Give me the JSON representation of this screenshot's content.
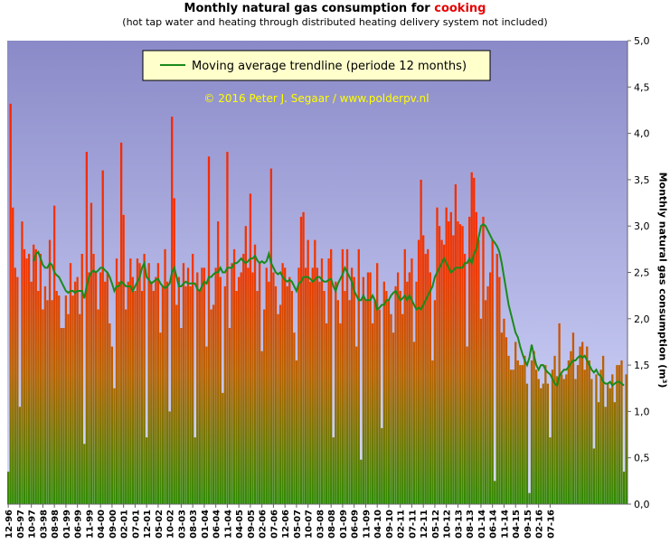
{
  "chart_data": {
    "type": "bar",
    "title_prefix": "Monthly natural gas consumption for ",
    "title_highlight": "cooking",
    "subtitle": "(hot tap water and heating through distributed heating delivery system not included)",
    "ylabel": "Monthly natural gas consumption (m³)",
    "watermark": "© 2016 Peter J. Segaar / www.polderpv.nl",
    "legend": "Moving average trendline (periode 12 months)",
    "legend_placement": "top-center",
    "ylim": [
      0,
      5
    ],
    "yticks": [
      "0,0",
      "0,5",
      "1,0",
      "1,5",
      "2,0",
      "2,5",
      "3,0",
      "3,5",
      "4,0",
      "4,5",
      "5,0"
    ],
    "grid": false,
    "colors": {
      "bar_top": "#ff1a00",
      "bar_bottom": "#2e8b00",
      "trend": "#1a8a1a",
      "bg_top": "#8a8ac8",
      "bg_bottom": "#d8ddff"
    },
    "xticks": [
      "12-96",
      "05-97",
      "10-97",
      "03-98",
      "08-98",
      "01-99",
      "06-99",
      "11-99",
      "04-00",
      "09-00",
      "02-01",
      "07-01",
      "12-01",
      "05-02",
      "10-02",
      "03-03",
      "08-03",
      "01-04",
      "06-04",
      "11-04",
      "04-05",
      "09-05",
      "02-06",
      "07-06",
      "12-06",
      "05-07",
      "10-07",
      "03-08",
      "08-08",
      "01-09",
      "06-09",
      "11-09",
      "04-10",
      "09-10",
      "02-11",
      "07-11",
      "12-11",
      "05-12",
      "10-12",
      "03-13",
      "08-13",
      "01-14",
      "06-14",
      "11-14",
      "04-15",
      "09-15",
      "02-16",
      "07-16"
    ],
    "series": [
      {
        "values": [
          0.35,
          4.32,
          3.2,
          2.55,
          2.45,
          1.05,
          3.05,
          2.75,
          2.65,
          2.7,
          2.4,
          2.8,
          2.75,
          2.3,
          2.7,
          2.1,
          2.35,
          2.2,
          2.85,
          2.2,
          3.22,
          2.3,
          2.25,
          1.9,
          1.9,
          2.25,
          2.05,
          2.6,
          2.25,
          2.4,
          2.45,
          2.05,
          2.7,
          0.65,
          3.8,
          2.5,
          3.25,
          2.7,
          2.5,
          2.1,
          2.5,
          3.6,
          2.4,
          2.5,
          1.95,
          1.7,
          1.25,
          2.65,
          2.4,
          3.9,
          3.12,
          2.1,
          2.4,
          2.65,
          2.45,
          2.3,
          2.65,
          2.6,
          2.3,
          2.7,
          0.72,
          2.6,
          2.4,
          2.3,
          2.45,
          2.6,
          1.85,
          2.35,
          2.75,
          2.4,
          1.0,
          4.18,
          3.3,
          2.15,
          2.45,
          1.9,
          2.6,
          2.35,
          2.55,
          2.35,
          2.7,
          0.72,
          2.5,
          2.3,
          2.55,
          2.55,
          1.7,
          3.75,
          2.1,
          2.15,
          2.55,
          3.05,
          2.45,
          1.2,
          2.35,
          3.8,
          1.9,
          2.6,
          2.75,
          2.3,
          2.45,
          2.5,
          2.7,
          3.0,
          2.55,
          3.35,
          2.5,
          2.8,
          2.3,
          2.6,
          1.65,
          2.1,
          2.55,
          2.4,
          3.62,
          2.5,
          2.35,
          2.05,
          2.15,
          2.6,
          2.55,
          2.35,
          2.45,
          2.3,
          1.85,
          1.55,
          2.55,
          3.1,
          3.15,
          2.55,
          2.85,
          2.4,
          2.55,
          2.85,
          2.55,
          2.4,
          2.65,
          2.3,
          1.95,
          2.65,
          2.75,
          0.72,
          2.4,
          2.2,
          1.95,
          2.75,
          2.3,
          2.75,
          2.2,
          2.55,
          2.45,
          1.7,
          2.75,
          0.48,
          2.45,
          2.2,
          2.5,
          2.5,
          1.95,
          2.2,
          2.6,
          2.1,
          0.82,
          2.4,
          2.3,
          2.2,
          2.05,
          1.85,
          2.35,
          2.5,
          2.3,
          2.05,
          2.75,
          2.4,
          2.5,
          2.65,
          1.75,
          2.4,
          2.85,
          3.5,
          2.9,
          2.7,
          2.75,
          2.5,
          1.55,
          2.2,
          3.2,
          3.0,
          2.85,
          2.8,
          3.2,
          3.05,
          3.15,
          2.9,
          3.45,
          3.05,
          3.02,
          3.0,
          2.7,
          1.7,
          3.1,
          3.58,
          3.52,
          3.15,
          2.85,
          2.0,
          3.1,
          2.2,
          2.35,
          2.5,
          2.85,
          0.25,
          2.7,
          2.45,
          1.85,
          2.0,
          1.8,
          1.6,
          1.45,
          1.45,
          1.75,
          1.55,
          1.5,
          1.5,
          1.6,
          1.3,
          0.12,
          1.55,
          1.65,
          1.45,
          1.35,
          1.25,
          1.3,
          1.5,
          1.3,
          0.72,
          1.45,
          1.6,
          1.38,
          1.95,
          1.4,
          1.35,
          1.4,
          1.55,
          1.65,
          1.85,
          1.35,
          1.5,
          1.7,
          1.75,
          1.45,
          1.7,
          1.55,
          1.35,
          0.6,
          1.4,
          1.1,
          1.45,
          1.6,
          1.05,
          1.3,
          1.25,
          1.4,
          1.1,
          1.5,
          1.5,
          1.55,
          0.35,
          1.4
        ]
      },
      {
        "name": "Moving average trendline (periode 12 months)",
        "type": "line",
        "values": [
          null,
          null,
          null,
          null,
          null,
          null,
          null,
          null,
          null,
          null,
          null,
          2.62,
          2.7,
          2.72,
          2.65,
          2.58,
          2.55,
          2.55,
          2.6,
          2.58,
          2.5,
          2.47,
          2.45,
          2.4,
          2.35,
          2.3,
          2.28,
          2.3,
          2.3,
          2.28,
          2.3,
          2.3,
          2.3,
          2.22,
          2.35,
          2.45,
          2.5,
          2.52,
          2.5,
          2.52,
          2.55,
          2.55,
          2.52,
          2.5,
          2.45,
          2.38,
          2.3,
          2.35,
          2.35,
          2.4,
          2.38,
          2.35,
          2.35,
          2.35,
          2.3,
          2.35,
          2.4,
          2.45,
          2.55,
          2.6,
          2.45,
          2.42,
          2.38,
          2.4,
          2.42,
          2.43,
          2.38,
          2.35,
          2.33,
          2.35,
          2.38,
          2.5,
          2.55,
          2.45,
          2.35,
          2.35,
          2.38,
          2.4,
          2.38,
          2.38,
          2.38,
          2.38,
          2.32,
          2.3,
          2.35,
          2.4,
          2.38,
          2.45,
          2.45,
          2.48,
          2.5,
          2.5,
          2.55,
          2.5,
          2.5,
          2.55,
          2.55,
          2.55,
          2.6,
          2.6,
          2.62,
          2.65,
          2.62,
          2.6,
          2.62,
          2.65,
          2.65,
          2.68,
          2.63,
          2.6,
          2.62,
          2.6,
          2.62,
          2.7,
          2.6,
          2.55,
          2.5,
          2.48,
          2.5,
          2.45,
          2.42,
          2.4,
          2.42,
          2.4,
          2.35,
          2.3,
          2.38,
          2.4,
          2.45,
          2.45,
          2.45,
          2.43,
          2.4,
          2.42,
          2.45,
          2.45,
          2.42,
          2.4,
          2.4,
          2.42,
          2.43,
          2.35,
          2.3,
          2.38,
          2.43,
          2.48,
          2.55,
          2.5,
          2.45,
          2.4,
          2.3,
          2.25,
          2.2,
          2.2,
          2.25,
          2.2,
          2.2,
          2.2,
          2.25,
          2.2,
          2.1,
          2.12,
          2.15,
          2.15,
          2.2,
          2.2,
          2.25,
          2.28,
          2.3,
          2.25,
          2.2,
          2.22,
          2.25,
          2.2,
          2.25,
          2.2,
          2.15,
          2.1,
          2.12,
          2.1,
          2.15,
          2.2,
          2.25,
          2.3,
          2.35,
          2.45,
          2.5,
          2.55,
          2.6,
          2.65,
          2.6,
          2.55,
          2.5,
          2.52,
          2.55,
          2.55,
          2.55,
          2.55,
          2.6,
          2.6,
          2.65,
          2.6,
          2.7,
          2.75,
          2.88,
          3.0,
          3.02,
          3.0,
          2.95,
          2.9,
          2.85,
          2.82,
          2.78,
          2.72,
          2.6,
          2.45,
          2.3,
          2.15,
          2.05,
          1.95,
          1.85,
          1.8,
          1.7,
          1.62,
          1.55,
          1.5,
          1.58,
          1.72,
          1.6,
          1.5,
          1.45,
          1.5,
          1.5,
          1.45,
          1.42,
          1.4,
          1.35,
          1.3,
          1.28,
          1.38,
          1.42,
          1.45,
          1.45,
          1.48,
          1.52,
          1.55,
          1.55,
          1.58,
          1.6,
          1.58,
          1.6,
          1.55,
          1.5,
          1.45,
          1.42,
          1.45,
          1.4,
          1.38,
          1.32,
          1.3,
          1.3,
          1.32,
          1.28,
          1.3,
          1.32,
          1.32,
          1.3,
          1.28
        ]
      }
    ]
  }
}
